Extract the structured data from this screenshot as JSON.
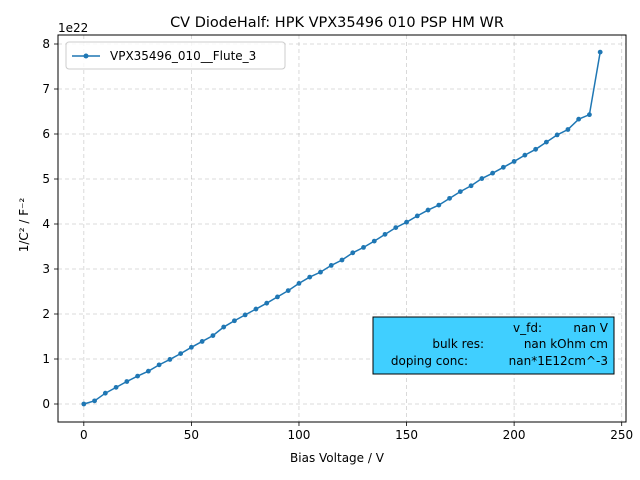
{
  "chart_data": {
    "type": "line",
    "title": "CV DiodeHalf: HPK VPX35496 010 PSP HM WR",
    "xlabel": "Bias Voltage / V",
    "ylabel": "1/C² / F⁻²",
    "y_offset_label": "1e22",
    "xlim": [
      -12,
      252
    ],
    "ylim": [
      -0.4,
      8.2
    ],
    "y_scale_multiplier": "1e22",
    "x_ticks": [
      0,
      50,
      100,
      150,
      200,
      250
    ],
    "x_tick_labels": [
      "0",
      "50",
      "100",
      "150",
      "200",
      "250"
    ],
    "y_ticks": [
      0,
      1,
      2,
      3,
      4,
      5,
      6,
      7,
      8
    ],
    "y_tick_labels": [
      "0",
      "1",
      "2",
      "3",
      "4",
      "5",
      "6",
      "7",
      "8"
    ],
    "grid": true,
    "legend_position": "top-left",
    "series": [
      {
        "name": "VPX35496_010__Flute_3",
        "color": "#1f77b4",
        "x": [
          0,
          5,
          10,
          15,
          20,
          25,
          30,
          35,
          40,
          45,
          50,
          55,
          60,
          65,
          70,
          75,
          80,
          85,
          90,
          95,
          100,
          105,
          110,
          115,
          120,
          125,
          130,
          135,
          140,
          145,
          150,
          155,
          160,
          165,
          170,
          175,
          180,
          185,
          190,
          195,
          200,
          205,
          210,
          215,
          220,
          225,
          230,
          235,
          240
        ],
        "y": [
          0.0,
          0.07,
          0.24,
          0.37,
          0.5,
          0.62,
          0.73,
          0.87,
          0.99,
          1.12,
          1.26,
          1.39,
          1.52,
          1.71,
          1.85,
          1.98,
          2.11,
          2.24,
          2.38,
          2.52,
          2.68,
          2.82,
          2.93,
          3.08,
          3.2,
          3.36,
          3.48,
          3.62,
          3.77,
          3.92,
          4.04,
          4.18,
          4.31,
          4.42,
          4.57,
          4.72,
          4.85,
          5.01,
          5.13,
          5.26,
          5.39,
          5.53,
          5.66,
          5.82,
          5.98,
          6.1,
          6.33,
          6.43,
          7.82
        ]
      }
    ],
    "annotation": {
      "lines": [
        {
          "key": "v_fd:",
          "value": "nan V"
        },
        {
          "key": "bulk res:",
          "value": "nan kOhm cm"
        },
        {
          "key": "doping conc:",
          "value": "nan*1E12cm^-3"
        }
      ],
      "background": "#40cfff",
      "position": "bottom-right"
    }
  }
}
